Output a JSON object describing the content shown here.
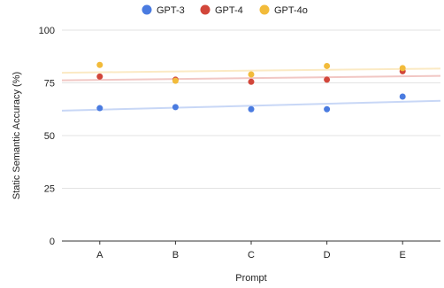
{
  "chart_data": {
    "type": "scatter",
    "categories": [
      "A",
      "B",
      "C",
      "D",
      "E"
    ],
    "series": [
      {
        "name": "GPT-3",
        "color": "#4a7be0",
        "values": [
          63,
          63.5,
          62.5,
          62.5,
          68.5
        ],
        "trend": [
          61.8,
          66.5
        ]
      },
      {
        "name": "GPT-4",
        "color": "#d2463a",
        "values": [
          78,
          76.5,
          75.5,
          76.5,
          80.5
        ],
        "trend": [
          76.2,
          78.3
        ]
      },
      {
        "name": "GPT-4o",
        "color": "#f2bb3a",
        "values": [
          83.5,
          76,
          79,
          83,
          82
        ],
        "trend": [
          79.8,
          81.8
        ]
      }
    ],
    "xlabel": "Prompt",
    "ylabel": "Static Semantic Accuracy (%)",
    "ylim": [
      0,
      100
    ],
    "yticks": [
      "0",
      "25",
      "50",
      "75",
      "100"
    ],
    "legend_position": "top",
    "grid": "horizontal"
  }
}
